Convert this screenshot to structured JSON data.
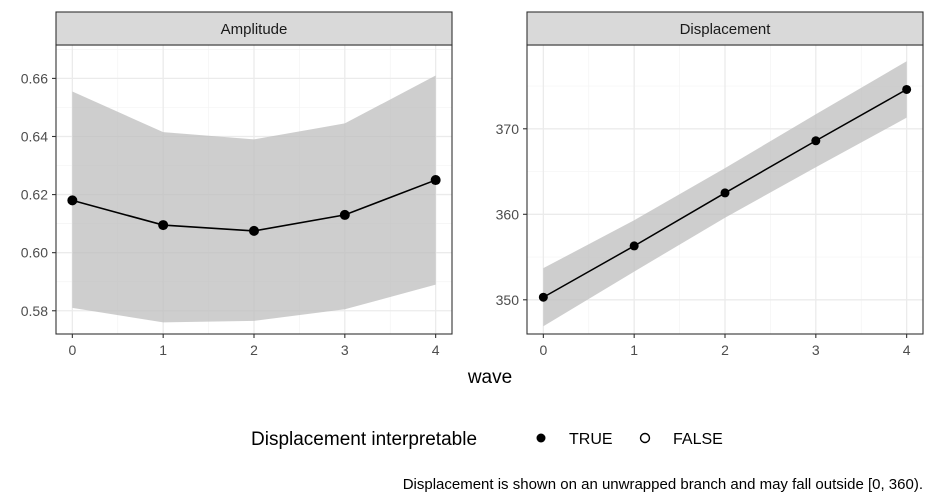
{
  "chart_data": {
    "type": "line",
    "xlabel": "wave",
    "x": [
      0,
      1,
      2,
      3,
      4
    ],
    "x_ticks": [
      "0",
      "1",
      "2",
      "3",
      "4"
    ],
    "grid": true,
    "facets": [
      {
        "strip": "Amplitude",
        "ylim": [
          0.572,
          0.6715
        ],
        "y_ticks": [
          0.58,
          0.6,
          0.62,
          0.64,
          0.66
        ],
        "y_tick_labels": [
          "0.58",
          "0.60",
          "0.62",
          "0.64",
          "0.66"
        ],
        "series": [
          {
            "values": [
              0.618,
              0.6095,
              0.6075,
              0.613,
              0.625
            ],
            "ribbon_lower": [
              0.581,
              0.576,
              0.5765,
              0.5805,
              0.589
            ],
            "ribbon_upper": [
              0.6555,
              0.6415,
              0.639,
              0.6445,
              0.661
            ],
            "interpretable": [
              true,
              true,
              true,
              true,
              true
            ]
          }
        ]
      },
      {
        "strip": "Displacement",
        "ylim": [
          346.0,
          379.8
        ],
        "y_ticks": [
          350,
          360,
          370
        ],
        "y_tick_labels": [
          "350",
          "360",
          "370"
        ],
        "series": [
          {
            "values": [
              350.3,
              356.3,
              362.5,
              368.6,
              374.6
            ],
            "ribbon_lower": [
              346.9,
              353.3,
              359.6,
              365.5,
              371.3
            ],
            "ribbon_upper": [
              353.7,
              359.3,
              365.4,
              371.7,
              377.9
            ],
            "interpretable": [
              true,
              true,
              true,
              true,
              true
            ]
          }
        ]
      }
    ],
    "legend": {
      "title": "Displacement interpretable",
      "placement": "bottom",
      "entries": [
        {
          "label": "TRUE",
          "marker": "filled-circle"
        },
        {
          "label": "FALSE",
          "marker": "open-circle"
        }
      ]
    },
    "caption": "Displacement is shown on an unwrapped branch and may fall outside [0, 360).",
    "colors": {
      "line": "#000000",
      "ribbon": "#bdbdbd",
      "strip_fill": "#d9d9d9",
      "grid": "#ebebeb",
      "panel_border": "#333333"
    }
  }
}
